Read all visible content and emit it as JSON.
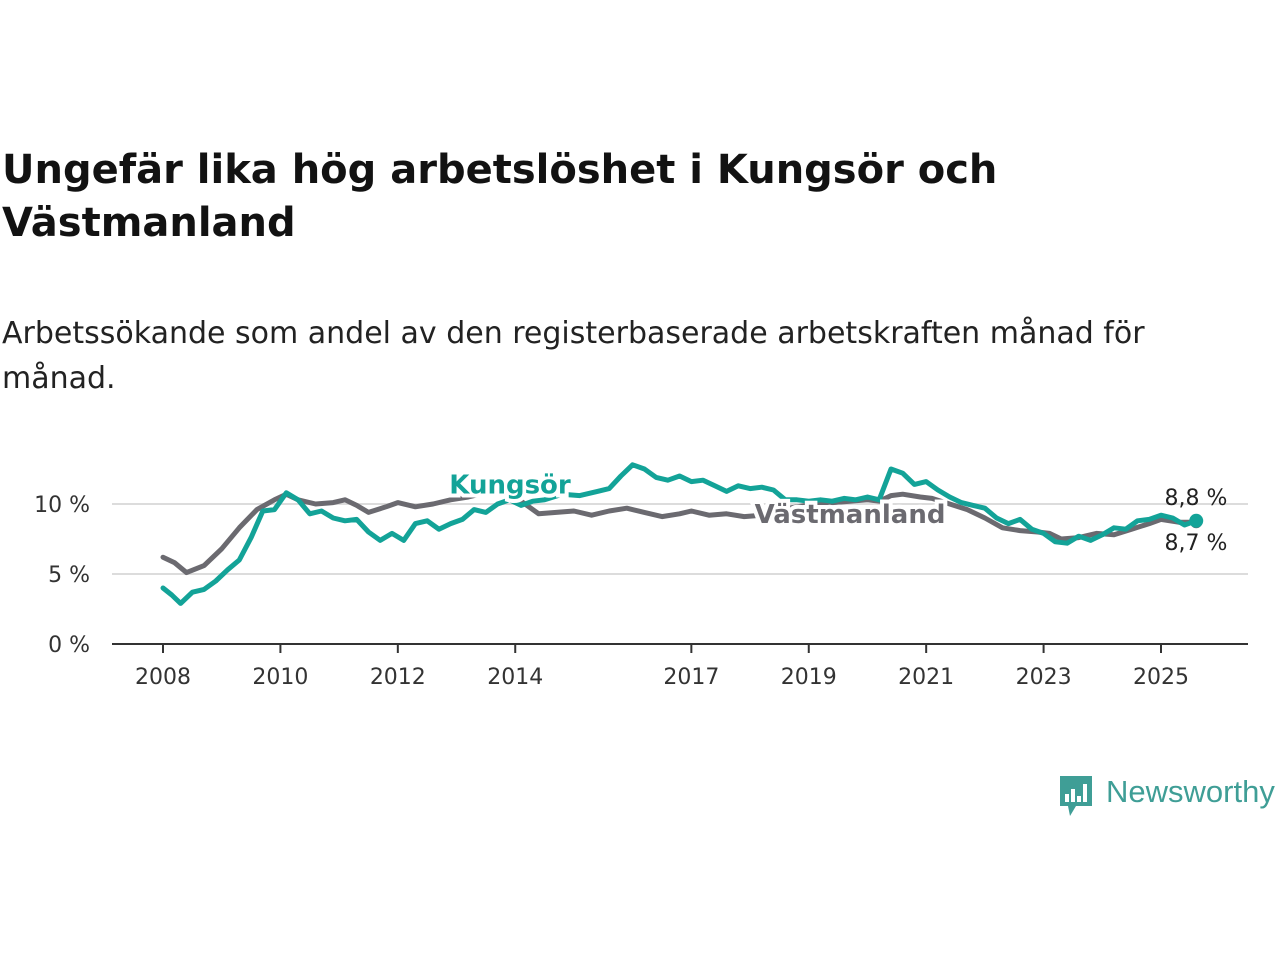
{
  "header": {
    "title": "Ungefär lika hög arbetslöshet i Kungsör och Västmanland",
    "subtitle": "Arbetssökande som andel av den registerbaserade arbetskraften månad för månad."
  },
  "brand": {
    "label": "Newsworthy",
    "icon": "newsworthy-logo-icon",
    "color": "#3f9e96"
  },
  "chart_data": {
    "type": "line",
    "title": "Ungefär lika hög arbetslöshet i Kungsör och Västmanland",
    "subtitle": "Arbetssökande som andel av den registerbaserade arbetskraften månad för månad.",
    "xlabel": "",
    "ylabel": "",
    "x_range": [
      2007.6,
      2026.4
    ],
    "ylim": [
      0,
      12
    ],
    "y_ticks": [
      0,
      5,
      10
    ],
    "y_tick_labels": [
      "0 %",
      "5 %",
      "10 %"
    ],
    "x_ticks": [
      2008,
      2010,
      2012,
      2014,
      2017,
      2019,
      2021,
      2023,
      2025
    ],
    "x_tick_labels": [
      "2008",
      "2010",
      "2012",
      "2014",
      "2017",
      "2019",
      "2021",
      "2023",
      "2025"
    ],
    "grid": "horizontal",
    "legend": "inline labels",
    "series": [
      {
        "name": "Västmanland",
        "color": "#6b6a70",
        "end_label": "8,7 %",
        "points": [
          [
            2008.0,
            6.2
          ],
          [
            2008.2,
            5.8
          ],
          [
            2008.4,
            5.1
          ],
          [
            2008.7,
            5.6
          ],
          [
            2009.0,
            6.8
          ],
          [
            2009.3,
            8.3
          ],
          [
            2009.6,
            9.6
          ],
          [
            2009.9,
            10.3
          ],
          [
            2010.1,
            10.7
          ],
          [
            2010.3,
            10.3
          ],
          [
            2010.6,
            10.0
          ],
          [
            2010.9,
            10.1
          ],
          [
            2011.1,
            10.3
          ],
          [
            2011.3,
            9.9
          ],
          [
            2011.5,
            9.4
          ],
          [
            2011.8,
            9.8
          ],
          [
            2012.0,
            10.1
          ],
          [
            2012.3,
            9.8
          ],
          [
            2012.6,
            10.0
          ],
          [
            2012.9,
            10.3
          ],
          [
            2013.2,
            10.5
          ],
          [
            2013.5,
            10.8
          ],
          [
            2013.8,
            10.9
          ],
          [
            2014.1,
            10.2
          ],
          [
            2014.4,
            9.3
          ],
          [
            2014.7,
            9.4
          ],
          [
            2015.0,
            9.5
          ],
          [
            2015.3,
            9.2
          ],
          [
            2015.6,
            9.5
          ],
          [
            2015.9,
            9.7
          ],
          [
            2016.2,
            9.4
          ],
          [
            2016.5,
            9.1
          ],
          [
            2016.8,
            9.3
          ],
          [
            2017.0,
            9.5
          ],
          [
            2017.3,
            9.2
          ],
          [
            2017.6,
            9.3
          ],
          [
            2017.9,
            9.1
          ],
          [
            2018.2,
            9.2
          ],
          [
            2018.5,
            9.6
          ],
          [
            2018.8,
            9.8
          ],
          [
            2019.1,
            10.0
          ],
          [
            2019.4,
            10.1
          ],
          [
            2019.7,
            10.2
          ],
          [
            2020.0,
            10.3
          ],
          [
            2020.2,
            10.2
          ],
          [
            2020.4,
            10.6
          ],
          [
            2020.6,
            10.7
          ],
          [
            2020.9,
            10.5
          ],
          [
            2021.1,
            10.4
          ],
          [
            2021.4,
            10.0
          ],
          [
            2021.7,
            9.6
          ],
          [
            2022.0,
            9.0
          ],
          [
            2022.3,
            8.3
          ],
          [
            2022.6,
            8.1
          ],
          [
            2022.9,
            8.0
          ],
          [
            2023.1,
            7.9
          ],
          [
            2023.3,
            7.5
          ],
          [
            2023.6,
            7.6
          ],
          [
            2023.9,
            7.9
          ],
          [
            2024.2,
            7.8
          ],
          [
            2024.5,
            8.2
          ],
          [
            2024.8,
            8.6
          ],
          [
            2025.0,
            8.9
          ],
          [
            2025.3,
            8.7
          ],
          [
            2025.6,
            8.7
          ]
        ]
      },
      {
        "name": "Kungsör",
        "color": "#13a398",
        "end_label": "8,8 %",
        "points": [
          [
            2008.0,
            4.0
          ],
          [
            2008.15,
            3.5
          ],
          [
            2008.3,
            2.9
          ],
          [
            2008.5,
            3.7
          ],
          [
            2008.7,
            3.9
          ],
          [
            2008.9,
            4.5
          ],
          [
            2009.1,
            5.3
          ],
          [
            2009.3,
            6.0
          ],
          [
            2009.5,
            7.6
          ],
          [
            2009.7,
            9.5
          ],
          [
            2009.9,
            9.6
          ],
          [
            2010.1,
            10.8
          ],
          [
            2010.3,
            10.3
          ],
          [
            2010.5,
            9.3
          ],
          [
            2010.7,
            9.5
          ],
          [
            2010.9,
            9.0
          ],
          [
            2011.1,
            8.8
          ],
          [
            2011.3,
            8.9
          ],
          [
            2011.5,
            8.0
          ],
          [
            2011.7,
            7.4
          ],
          [
            2011.9,
            7.9
          ],
          [
            2012.1,
            7.4
          ],
          [
            2012.3,
            8.6
          ],
          [
            2012.5,
            8.8
          ],
          [
            2012.7,
            8.2
          ],
          [
            2012.9,
            8.6
          ],
          [
            2013.1,
            8.9
          ],
          [
            2013.3,
            9.6
          ],
          [
            2013.5,
            9.4
          ],
          [
            2013.7,
            10.0
          ],
          [
            2013.9,
            10.3
          ],
          [
            2014.1,
            9.9
          ],
          [
            2014.3,
            10.2
          ],
          [
            2014.5,
            10.3
          ],
          [
            2014.8,
            10.7
          ],
          [
            2015.1,
            10.6
          ],
          [
            2015.4,
            10.9
          ],
          [
            2015.6,
            11.1
          ],
          [
            2015.8,
            12.0
          ],
          [
            2016.0,
            12.8
          ],
          [
            2016.2,
            12.5
          ],
          [
            2016.4,
            11.9
          ],
          [
            2016.6,
            11.7
          ],
          [
            2016.8,
            12.0
          ],
          [
            2017.0,
            11.6
          ],
          [
            2017.2,
            11.7
          ],
          [
            2017.4,
            11.3
          ],
          [
            2017.6,
            10.9
          ],
          [
            2017.8,
            11.3
          ],
          [
            2018.0,
            11.1
          ],
          [
            2018.2,
            11.2
          ],
          [
            2018.4,
            11.0
          ],
          [
            2018.6,
            10.3
          ],
          [
            2018.8,
            10.3
          ],
          [
            2019.0,
            10.2
          ],
          [
            2019.2,
            10.3
          ],
          [
            2019.4,
            10.2
          ],
          [
            2019.6,
            10.4
          ],
          [
            2019.8,
            10.3
          ],
          [
            2020.0,
            10.5
          ],
          [
            2020.2,
            10.3
          ],
          [
            2020.4,
            12.5
          ],
          [
            2020.6,
            12.2
          ],
          [
            2020.8,
            11.4
          ],
          [
            2021.0,
            11.6
          ],
          [
            2021.2,
            11.0
          ],
          [
            2021.4,
            10.5
          ],
          [
            2021.6,
            10.1
          ],
          [
            2021.8,
            9.9
          ],
          [
            2022.0,
            9.7
          ],
          [
            2022.2,
            9.0
          ],
          [
            2022.4,
            8.6
          ],
          [
            2022.6,
            8.9
          ],
          [
            2022.8,
            8.2
          ],
          [
            2023.0,
            7.9
          ],
          [
            2023.2,
            7.3
          ],
          [
            2023.4,
            7.2
          ],
          [
            2023.6,
            7.7
          ],
          [
            2023.8,
            7.4
          ],
          [
            2024.0,
            7.8
          ],
          [
            2024.2,
            8.3
          ],
          [
            2024.4,
            8.2
          ],
          [
            2024.6,
            8.8
          ],
          [
            2024.8,
            8.9
          ],
          [
            2025.0,
            9.2
          ],
          [
            2025.2,
            9.0
          ],
          [
            2025.4,
            8.5
          ],
          [
            2025.6,
            8.8
          ]
        ]
      }
    ]
  }
}
